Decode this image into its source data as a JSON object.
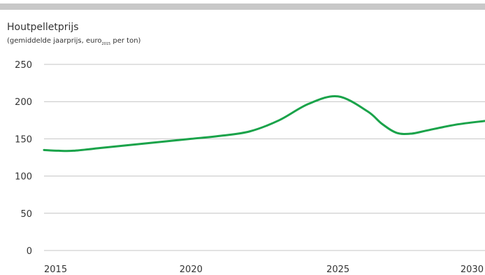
{
  "chart_data": {
    "type": "line",
    "title": "Houtpelletprijs",
    "subtitle_prefix": "(gemiddelde jaarprijs,  euro",
    "subtitle_sub": "2015",
    "subtitle_suffix": " per ton)",
    "xlabel": "",
    "ylabel": "",
    "xlim": [
      2015,
      2030
    ],
    "ylim": [
      0,
      250
    ],
    "x_ticks": [
      "2015",
      "2020",
      "2025",
      "2030"
    ],
    "y_ticks": [
      "0",
      "50",
      "100",
      "150",
      "200",
      "250"
    ],
    "grid": true,
    "line_color": "#1aa34a",
    "series": [
      {
        "x": [
          2015,
          2015.5,
          2016,
          2017,
          2018,
          2019,
          2020,
          2021,
          2022,
          2023,
          2024,
          2025,
          2026,
          2026.5,
          2027,
          2027.5,
          2028,
          2029,
          2030
        ],
        "values": [
          135,
          134,
          134,
          138,
          142,
          146,
          150,
          154,
          160,
          175,
          197,
          207,
          187,
          170,
          158,
          157,
          161,
          169,
          174
        ]
      }
    ]
  }
}
